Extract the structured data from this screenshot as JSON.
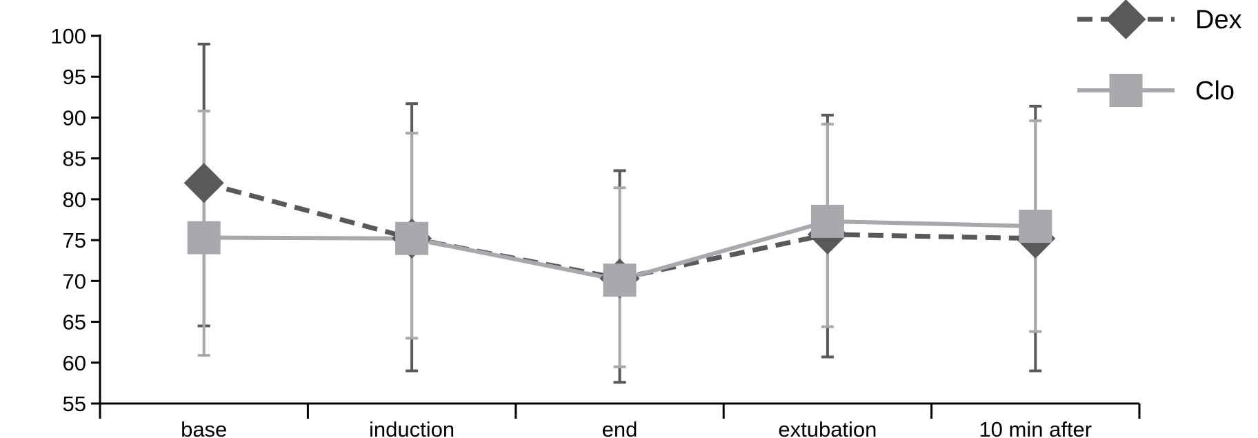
{
  "chart_data": {
    "type": "line",
    "categories": [
      "base",
      "induction",
      "end",
      "extubation",
      "10 min after"
    ],
    "ylim": [
      55,
      100
    ],
    "yticks": [
      55,
      60,
      65,
      70,
      75,
      80,
      85,
      90,
      95,
      100
    ],
    "grid": false,
    "legend_position": "top-right",
    "series": [
      {
        "name": "Dex",
        "values": [
          82.0,
          75.2,
          70.3,
          75.7,
          75.2
        ],
        "error_low": [
          64.5,
          59.0,
          57.6,
          60.7,
          59.0
        ],
        "error_high": [
          99.0,
          91.7,
          83.5,
          90.3,
          91.4
        ],
        "color": "#58595b",
        "line_style": "dashed",
        "marker": "diamond"
      },
      {
        "name": "Clo",
        "values": [
          75.3,
          75.2,
          70.1,
          77.3,
          76.7
        ],
        "error_low": [
          60.9,
          63.0,
          59.5,
          64.4,
          63.8
        ],
        "error_high": [
          90.8,
          88.1,
          81.4,
          89.2,
          89.6
        ],
        "color": "#a7a9ac",
        "line_style": "solid",
        "marker": "square"
      }
    ]
  }
}
